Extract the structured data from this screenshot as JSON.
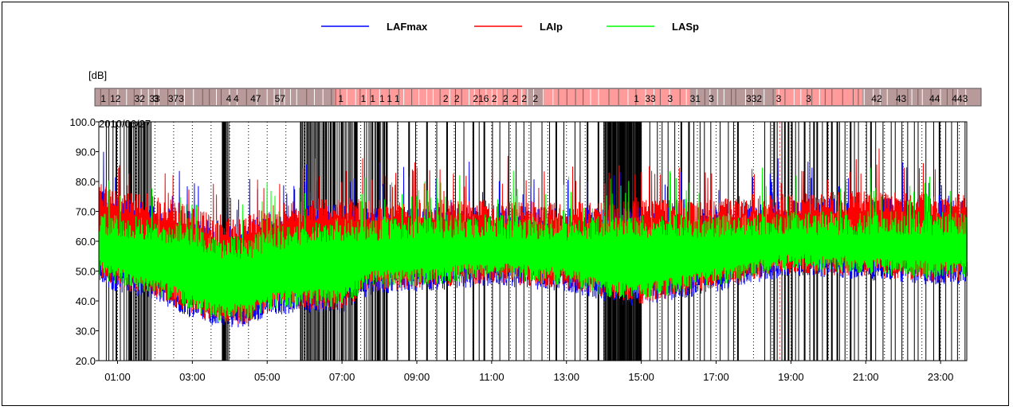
{
  "chart_data": {
    "type": "line",
    "title": "",
    "xlabel": "",
    "ylabel": "[dB]",
    "date_annotation": "2010/06/27",
    "ylim": [
      20,
      100
    ],
    "yticks": [
      "100.0",
      "90.0",
      "80.0",
      "70.0",
      "60.0",
      "50.0",
      "40.0",
      "30.0",
      "20.0"
    ],
    "ytick_values": [
      100,
      90,
      80,
      70,
      60,
      50,
      40,
      30,
      20
    ],
    "xlim_hours": [
      0.5,
      23.7
    ],
    "xticks": [
      "01:00",
      "03:00",
      "05:00",
      "07:00",
      "09:00",
      "11:00",
      "13:00",
      "15:00",
      "17:00",
      "19:00",
      "21:00",
      "23:00"
    ],
    "xtick_hours": [
      1,
      3,
      5,
      7,
      9,
      11,
      13,
      15,
      17,
      19,
      21,
      23
    ],
    "legend_position": "top-center",
    "series": [
      {
        "name": "LAFmax",
        "color": "#0000ff",
        "x_hours": [
          0.5,
          1,
          2,
          3,
          3.7,
          4.5,
          5,
          6,
          7,
          7.7,
          9,
          11,
          13,
          14.5,
          15,
          17,
          18,
          19,
          21,
          23,
          23.7
        ],
        "upper": [
          78,
          75,
          72,
          70,
          65,
          67,
          70,
          72,
          73,
          72,
          72,
          72,
          71,
          72,
          72,
          72,
          74,
          74,
          75,
          74,
          74
        ],
        "lower": [
          45,
          43,
          40,
          34,
          31,
          31,
          35,
          36,
          36,
          42,
          43,
          45,
          43,
          38,
          38,
          43,
          46,
          48,
          47,
          45,
          46
        ]
      },
      {
        "name": "LAIp",
        "color": "#ff0000",
        "x_hours": [
          0.5,
          1,
          2,
          3,
          3.7,
          4.5,
          5,
          6,
          7,
          7.7,
          9,
          11,
          13,
          14.5,
          15,
          17,
          18,
          19,
          21,
          23,
          23.7
        ],
        "upper": [
          80,
          77,
          75,
          73,
          67,
          69,
          72,
          74,
          75,
          74,
          74,
          74,
          73,
          74,
          74,
          74,
          76,
          76,
          77,
          76,
          76
        ],
        "lower": [
          47,
          44,
          41,
          35,
          32,
          32,
          36,
          37,
          37,
          43,
          44,
          46,
          44,
          39,
          39,
          44,
          47,
          49,
          48,
          46,
          47
        ]
      },
      {
        "name": "LASp",
        "color": "#00ff00",
        "x_hours": [
          0.5,
          1,
          2,
          3,
          3.7,
          4.5,
          5,
          6,
          7,
          7.7,
          9,
          11,
          13,
          14.5,
          15,
          17,
          18,
          19,
          21,
          23,
          23.7
        ],
        "upper": [
          70,
          69,
          68,
          66,
          62,
          62,
          64,
          67,
          68,
          68,
          69,
          69,
          68,
          69,
          69,
          69,
          70,
          70,
          70,
          70,
          70
        ],
        "lower": [
          48,
          45,
          42,
          36,
          33,
          33,
          37,
          38,
          38,
          44,
          45,
          47,
          45,
          40,
          40,
          45,
          48,
          50,
          49,
          47,
          48
        ]
      }
    ],
    "event_markers": {
      "labels": [
        "1",
        "12",
        "32",
        "33",
        "3",
        "373",
        "4",
        "4",
        "47",
        "57",
        "1",
        "1",
        "1",
        "1",
        "1",
        "1",
        "2",
        "2",
        "216",
        "2",
        "2",
        "2",
        "2",
        "2",
        "1",
        "33",
        "3",
        "31",
        "3",
        "332",
        "3",
        "3",
        "42",
        "43",
        "44",
        "443"
      ]
    }
  }
}
